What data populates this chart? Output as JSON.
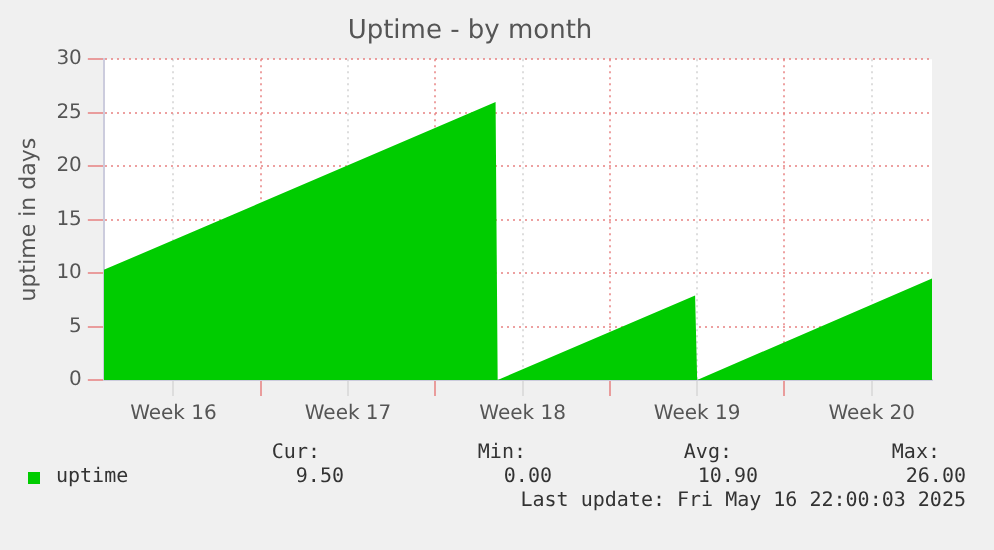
{
  "chart_data": {
    "type": "area",
    "title": "Uptime - by month",
    "ylabel": "uptime in days",
    "x": [
      "2025-04-13T17:00",
      "2025-04-29T10:00",
      "2025-04-29T12:00",
      "2025-05-07T10:00",
      "2025-05-07T12:00",
      "2025-05-16T22:00"
    ],
    "series": [
      {
        "name": "uptime",
        "color": "#00cc00",
        "values": [
          10.3,
          26,
          0,
          7.9,
          0,
          9.5
        ]
      }
    ],
    "xlim": [
      "2025-04-13T17:00",
      "2025-05-16T22:00"
    ],
    "xticks": [
      {
        "value": "2025-04-16T12:00",
        "label": "Week 16"
      },
      {
        "value": "2025-04-20",
        "label": null
      },
      {
        "value": "2025-04-23T12:00",
        "label": "Week 17"
      },
      {
        "value": "2025-04-27",
        "label": null
      },
      {
        "value": "2025-04-30T12:00",
        "label": "Week 18"
      },
      {
        "value": "2025-05-04",
        "label": null
      },
      {
        "value": "2025-05-07T12:00",
        "label": "Week 19"
      },
      {
        "value": "2025-05-11",
        "label": null
      },
      {
        "value": "2025-05-14T12:00",
        "label": "Week 20"
      }
    ],
    "ylim": [
      0,
      30
    ],
    "yticks": [
      0,
      5,
      10,
      15,
      20,
      25,
      30
    ],
    "grid": true,
    "legend": "bottom left",
    "annotations": [
      "Cur:",
      "Min:",
      "Avg:",
      "Max:",
      "9.50",
      "0.00",
      "10.90",
      "26.00",
      "Last update: Fri May 16 22:00:03 2025"
    ]
  }
}
